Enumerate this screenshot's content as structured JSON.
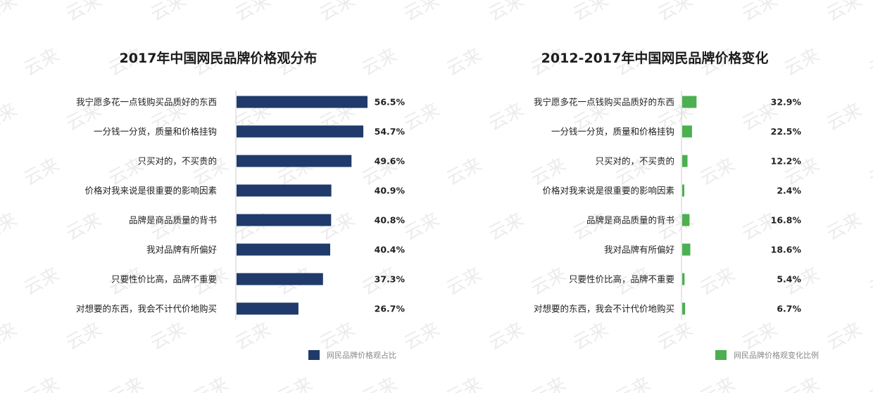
{
  "watermark": {
    "text": "云来"
  },
  "chart_data": [
    {
      "type": "bar",
      "orientation": "horizontal",
      "title": "2017年中国网民品牌价格观分布",
      "categories": [
        "我宁愿多花一点钱购买品质好的东西",
        "一分钱一分货，质量和价格挂钩",
        "只买对的，不买贵的",
        "价格对我来说是很重要的影响因素",
        "品牌是商品质量的背书",
        "我对品牌有所偏好",
        "只要性价比高，品牌不重要",
        "对想要的东西，我会不计代价地购买"
      ],
      "values": [
        56.5,
        54.7,
        49.6,
        40.9,
        40.8,
        40.4,
        37.3,
        26.7
      ],
      "value_labels": [
        "56.5%",
        "54.7%",
        "49.6%",
        "40.9%",
        "40.8%",
        "40.4%",
        "37.3%",
        "26.7%"
      ],
      "unit": "%",
      "xlim": [
        0,
        56.5
      ],
      "grid": false,
      "legend": {
        "position": "bottom-right",
        "entries": [
          "网民品牌价格观占比"
        ]
      },
      "color": "#1f3a6b"
    },
    {
      "type": "bar",
      "orientation": "horizontal",
      "title": "2012-2017年中国网民品牌价格变化",
      "categories": [
        "我宁愿多花一点钱购买品质好的东西",
        "一分钱一分货，质量和价格挂钩",
        "只买对的，不买贵的",
        "价格对我来说是很重要的影响因素",
        "品牌是商品质量的背书",
        "我对品牌有所偏好",
        "只要性价比高，品牌不重要",
        "对想要的东西，我会不计代价地购买"
      ],
      "values": [
        32.9,
        22.5,
        12.2,
        2.4,
        16.8,
        18.6,
        5.4,
        6.7
      ],
      "value_labels": [
        "32.9%",
        "22.5%",
        "12.2%",
        "2.4%",
        "16.8%",
        "18.6%",
        "5.4%",
        "6.7%"
      ],
      "unit": "%",
      "xlim": [
        0,
        330
      ],
      "grid": false,
      "legend": {
        "position": "bottom-right",
        "entries": [
          "网民品牌价格观变化比例"
        ]
      },
      "color": "#4caf50"
    }
  ]
}
